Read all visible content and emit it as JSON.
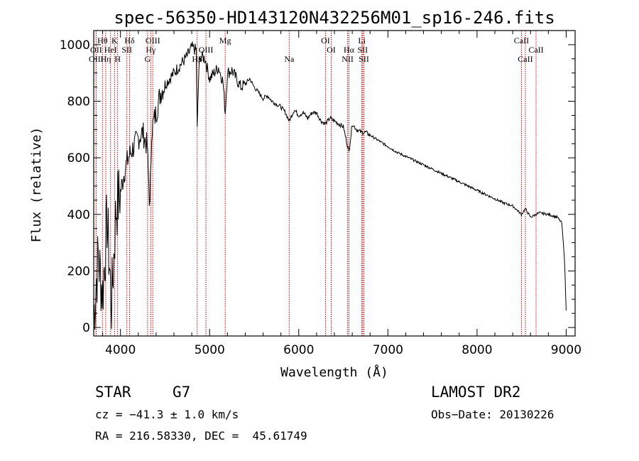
{
  "chart_data": {
    "type": "line",
    "title": "spec-56350-HD143120N432256M01_sp16-246.fits",
    "xlabel": "Wavelength (Å)",
    "ylabel": "Flux (relative)",
    "xlim": [
      3700,
      9100
    ],
    "ylim": [
      -30,
      1050
    ],
    "x_ticks": [
      4000,
      5000,
      6000,
      7000,
      8000,
      9000
    ],
    "y_ticks": [
      0,
      200,
      400,
      600,
      800,
      1000
    ],
    "x_tick_labels": [
      "4000",
      "5000",
      "6000",
      "7000",
      "8000",
      "9000"
    ],
    "y_tick_labels": [
      "0",
      "200",
      "400",
      "600",
      "800",
      "1000"
    ],
    "series": [
      {
        "name": "flux",
        "x": [
          3700,
          3750,
          3800,
          3850,
          3900,
          3950,
          4000,
          4050,
          4100,
          4150,
          4200,
          4250,
          4300,
          4330,
          4350,
          4400,
          4450,
          4500,
          4550,
          4600,
          4650,
          4700,
          4750,
          4800,
          4850,
          4861,
          4880,
          4900,
          4950,
          5000,
          5050,
          5100,
          5150,
          5175,
          5200,
          5250,
          5300,
          5350,
          5400,
          5450,
          5500,
          5550,
          5600,
          5650,
          5700,
          5750,
          5800,
          5850,
          5893,
          5950,
          6000,
          6050,
          6100,
          6150,
          6200,
          6250,
          6300,
          6350,
          6400,
          6450,
          6500,
          6563,
          6600,
          6650,
          6700,
          6750,
          6800,
          6900,
          7000,
          7100,
          7200,
          7300,
          7400,
          7500,
          7600,
          7700,
          7800,
          7900,
          8000,
          8100,
          8200,
          8300,
          8400,
          8498,
          8542,
          8600,
          8662,
          8700,
          8800,
          8900,
          8950,
          8980,
          9000
        ],
        "y": [
          40,
          250,
          120,
          380,
          80,
          420,
          480,
          560,
          610,
          640,
          670,
          690,
          640,
          420,
          700,
          760,
          830,
          860,
          880,
          900,
          920,
          940,
          960,
          990,
          980,
          700,
          920,
          960,
          950,
          880,
          900,
          920,
          870,
          760,
          900,
          910,
          880,
          850,
          860,
          880,
          850,
          830,
          810,
          820,
          800,
          790,
          780,
          760,
          730,
          770,
          750,
          760,
          740,
          760,
          760,
          730,
          720,
          740,
          730,
          720,
          710,
          620,
          720,
          700,
          690,
          690,
          680,
          660,
          640,
          620,
          605,
          590,
          575,
          560,
          545,
          530,
          515,
          500,
          485,
          470,
          455,
          440,
          430,
          400,
          420,
          390,
          400,
          405,
          400,
          390,
          370,
          250,
          60
        ]
      }
    ],
    "line_markers": [
      {
        "label": "Hθ",
        "wavelength": 3798,
        "row": 1
      },
      {
        "label": "OII",
        "wavelength": 3727,
        "row": 2
      },
      {
        "label": "OIII",
        "wavelength": 3727,
        "row": 3
      },
      {
        "label": "Hη",
        "wavelength": 3835,
        "row": 3
      },
      {
        "label": "K",
        "wavelength": 3934,
        "row": 1
      },
      {
        "label": "H",
        "wavelength": 3968,
        "row": 3
      },
      {
        "label": "HeI",
        "wavelength": 3889,
        "row": 2
      },
      {
        "label": "SII",
        "wavelength": 4072,
        "row": 2
      },
      {
        "label": "Hδ",
        "wavelength": 4102,
        "row": 1
      },
      {
        "label": "OIII",
        "wavelength": 4363,
        "row": 1
      },
      {
        "label": "Hγ",
        "wavelength": 4340,
        "row": 2
      },
      {
        "label": "G",
        "wavelength": 4304,
        "row": 3
      },
      {
        "label": "OIII",
        "wavelength": 4959,
        "row": 2
      },
      {
        "label": "Hβ",
        "wavelength": 4861,
        "row": 3
      },
      {
        "label": "Mg",
        "wavelength": 5175,
        "row": 1
      },
      {
        "label": "Na",
        "wavelength": 5893,
        "row": 3
      },
      {
        "label": "OI",
        "wavelength": 6300,
        "row": 1
      },
      {
        "label": "OI",
        "wavelength": 6364,
        "row": 2
      },
      {
        "label": "Hα",
        "wavelength": 6563,
        "row": 2
      },
      {
        "label": "NII",
        "wavelength": 6548,
        "row": 3
      },
      {
        "label": "Li",
        "wavelength": 6708,
        "row": 1
      },
      {
        "label": "SII",
        "wavelength": 6717,
        "row": 2
      },
      {
        "label": "SII",
        "wavelength": 6731,
        "row": 3
      },
      {
        "label": "CaII",
        "wavelength": 8498,
        "row": 1
      },
      {
        "label": "CaII",
        "wavelength": 8662,
        "row": 2
      },
      {
        "label": "CaII",
        "wavelength": 8542,
        "row": 3
      }
    ],
    "colors": {
      "line": "#000000",
      "marker": "#cc0000",
      "axes": "#000000"
    }
  },
  "info": {
    "object_class": "STAR",
    "subclass": "G7",
    "survey": "LAMOST DR2",
    "cz": "cz = −41.3 ± 1.0 km/s",
    "obs_date": "Obs−Date: 20130226",
    "coords": "RA = 216.58330, DEC =  45.61749"
  }
}
